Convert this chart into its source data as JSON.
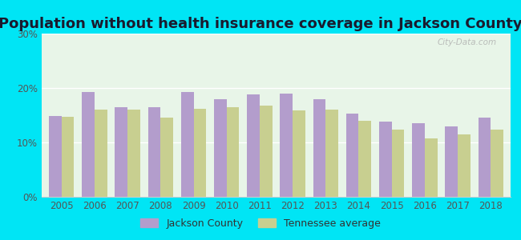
{
  "title": "Population without health insurance coverage in Jackson County",
  "years": [
    2005,
    2006,
    2007,
    2008,
    2009,
    2010,
    2011,
    2012,
    2013,
    2014,
    2015,
    2016,
    2017,
    2018
  ],
  "jackson_county": [
    14.8,
    19.3,
    16.5,
    16.5,
    19.2,
    17.9,
    18.8,
    19.0,
    17.9,
    15.3,
    13.8,
    13.5,
    13.0,
    14.5
  ],
  "tennessee_avg": [
    14.7,
    16.0,
    16.1,
    14.6,
    16.2,
    16.5,
    16.8,
    15.9,
    16.0,
    14.0,
    12.4,
    10.7,
    11.4,
    12.3
  ],
  "jackson_color": "#b39dcc",
  "tennessee_color": "#c8cf90",
  "background_outer": "#00e5f5",
  "background_inner_top": "#e8f5e8",
  "background_inner_bottom": "#f5ffe8",
  "ylim": [
    0,
    30
  ],
  "yticks": [
    0,
    10,
    20,
    30
  ],
  "ytick_labels": [
    "0%",
    "10%",
    "20%",
    "30%"
  ],
  "title_fontsize": 13,
  "title_color": "#1a1a2e",
  "tick_color": "#555555",
  "watermark": "City-Data.com",
  "legend_jackson": "Jackson County",
  "legend_tennessee": "Tennessee average"
}
